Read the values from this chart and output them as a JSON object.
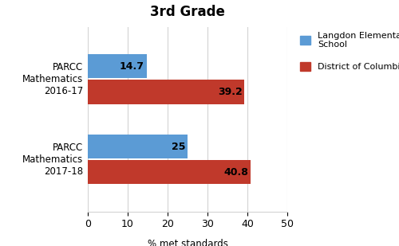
{
  "title": "3rd Grade",
  "categories": [
    "PARCC\nMathematics\n2016-17",
    "PARCC\nMathematics\n2017-18"
  ],
  "blue_values": [
    14.7,
    25
  ],
  "red_values": [
    39.2,
    40.8
  ],
  "blue_color": "#5b9bd5",
  "red_color": "#c0392b",
  "xlabel": "% met standards",
  "xlim": [
    0,
    50
  ],
  "xticks": [
    0,
    10,
    20,
    30,
    40,
    50
  ],
  "legend_blue": "Langdon Elementary\nSchool",
  "legend_red": "District of Columbia",
  "bar_height": 0.3,
  "title_fontsize": 12,
  "label_fontsize": 8.5,
  "tick_fontsize": 9,
  "value_fontsize": 9
}
